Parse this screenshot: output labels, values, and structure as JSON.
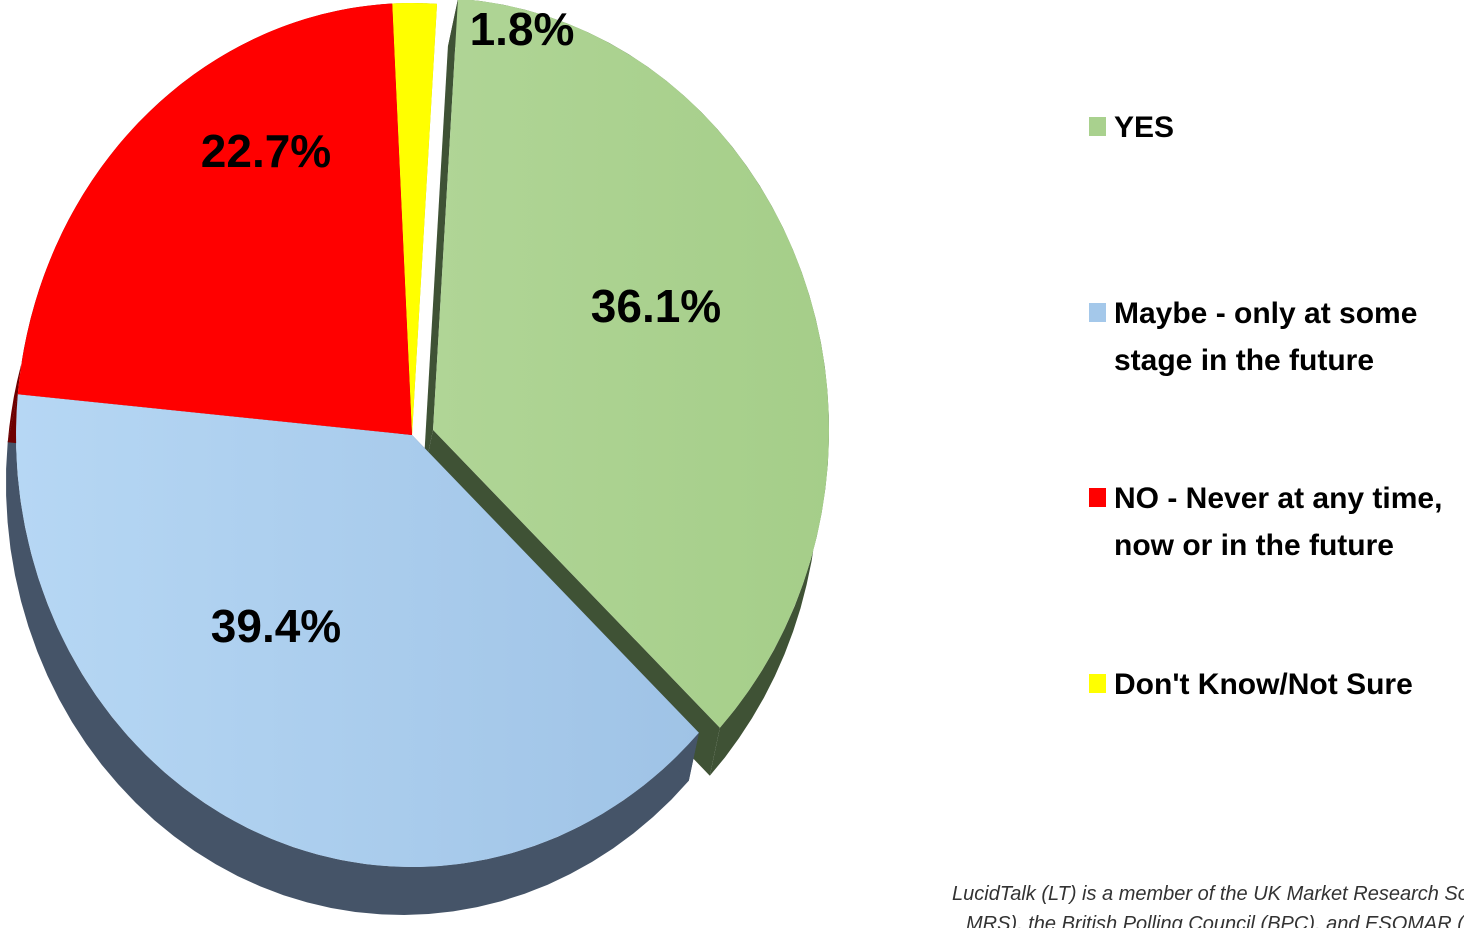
{
  "chart_data": {
    "type": "pie",
    "style": "3d exploded",
    "slices": [
      {
        "key": "yes",
        "label": "YES",
        "value": 36.1,
        "value_label": "36.1%",
        "color": "#a9d18e",
        "side_color": "#3f5235"
      },
      {
        "key": "maybe",
        "label": "Maybe - only at some stage in the future",
        "label_lines": [
          "Maybe - only at some",
          "stage in the future"
        ],
        "value": 39.4,
        "value_label": "39.4%",
        "color": "#a4c8ea",
        "side_color": "#455468"
      },
      {
        "key": "no",
        "label": "NO - Never at any time, now or in the future",
        "label_lines": [
          "NO - Never at any time,",
          "now or in the future"
        ],
        "value": 22.7,
        "value_label": "22.7%",
        "color": "#ff0000",
        "side_color": "#6e0000"
      },
      {
        "key": "dont-know",
        "label": "Don't Know/Not Sure",
        "value": 1.8,
        "value_label": "1.8%",
        "color": "#ffff00",
        "side_color": "#b3b300"
      }
    ],
    "legend_position": "right"
  },
  "footer": {
    "line1": "LucidTalk (LT) is a member of the UK Market Research Societ",
    "line2": "MRS), the British Polling Council (BPC), and ESOMAR (Euror"
  }
}
